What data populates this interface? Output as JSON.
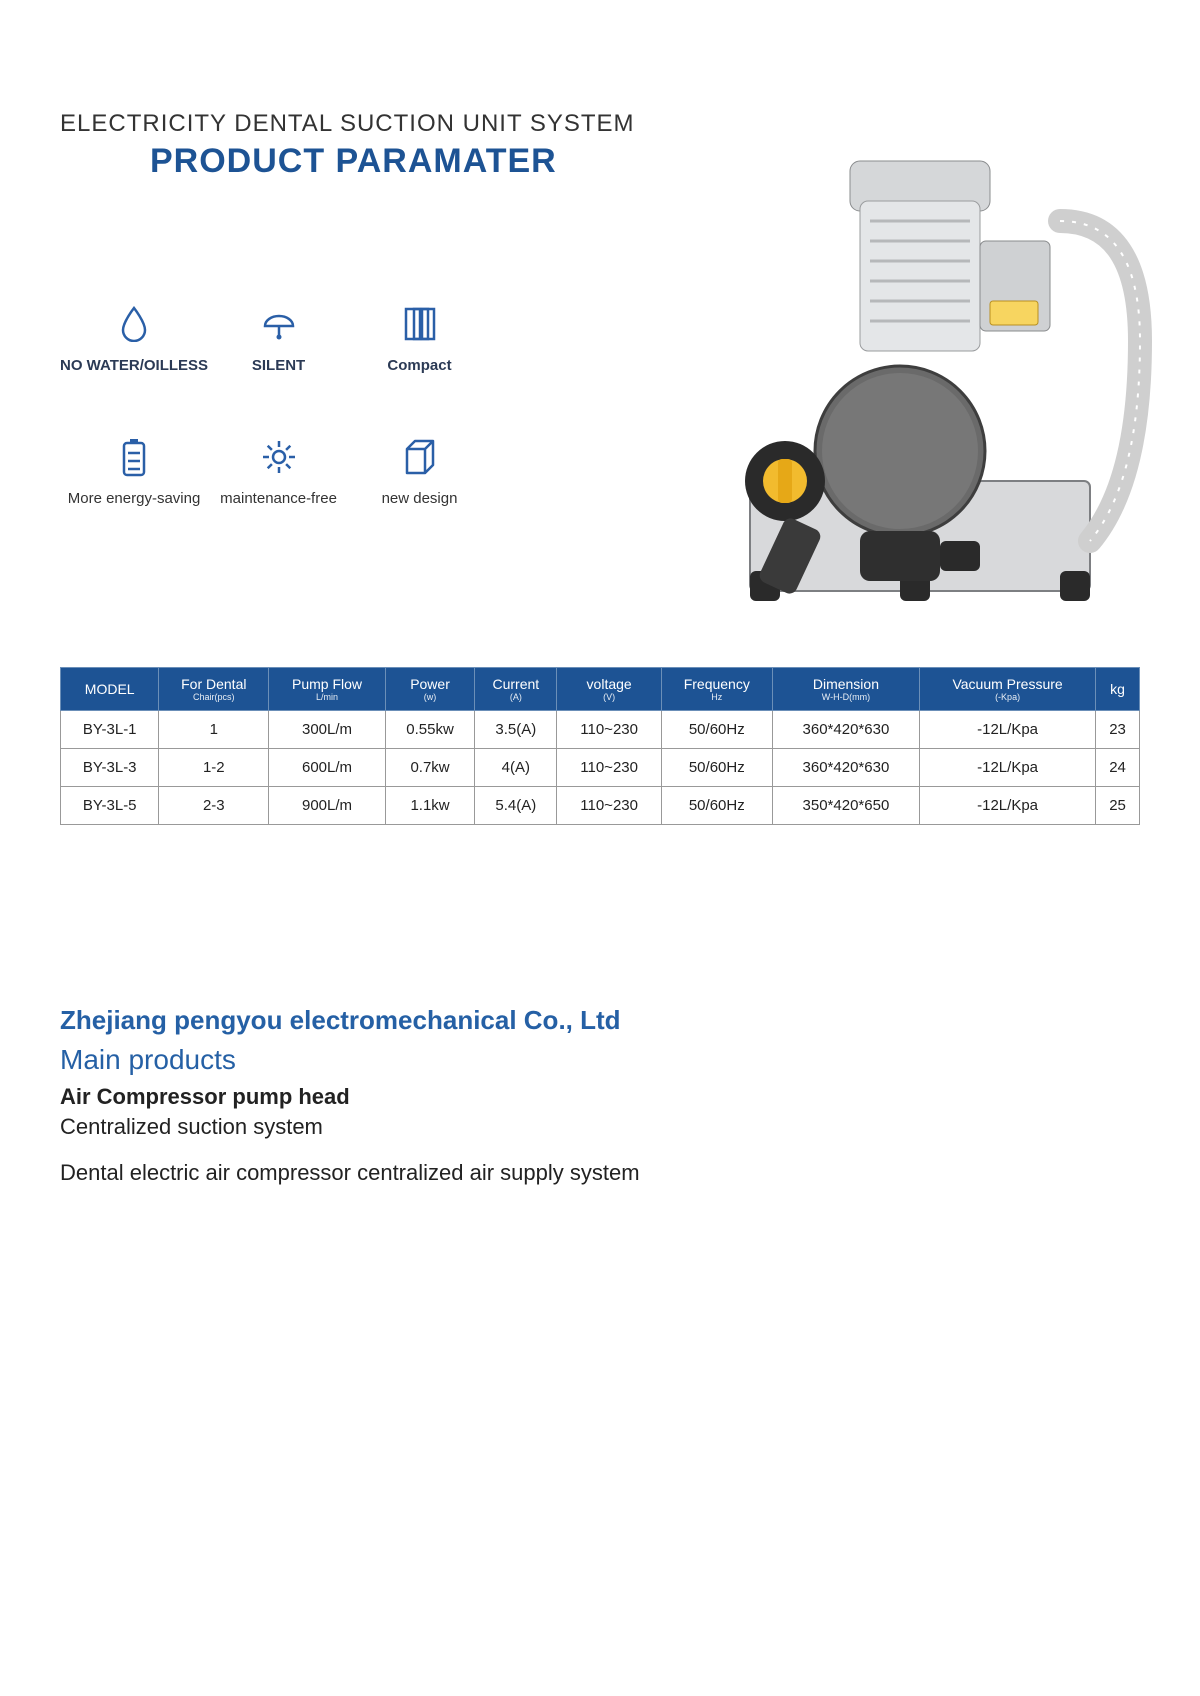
{
  "header": {
    "line1": "ELECTRICITY DENTAL SUCTION UNIT SYSTEM",
    "line2": "PRODUCT PARAMATER"
  },
  "features": [
    {
      "label": "NO WATER/OILLESS",
      "icon": "water-drop"
    },
    {
      "label": "SILENT",
      "icon": "bell"
    },
    {
      "label": "Compact",
      "icon": "layers"
    },
    {
      "label": "More energy-saving",
      "icon": "battery"
    },
    {
      "label": "maintenance-free",
      "icon": "gear"
    },
    {
      "label": "new design",
      "icon": "cube"
    }
  ],
  "icon_color": "#2a5fa7",
  "table": {
    "header_bg": "#1d5394",
    "header_fg": "#ffffff",
    "border_color": "#999999",
    "columns": [
      {
        "main": "MODEL",
        "sub": ""
      },
      {
        "main": "For Dental",
        "sub": "Chair(pcs)"
      },
      {
        "main": "Pump Flow",
        "sub": "L/min"
      },
      {
        "main": "Power",
        "sub": "(w)"
      },
      {
        "main": "Current",
        "sub": "(A)"
      },
      {
        "main": "voltage",
        "sub": "(V)"
      },
      {
        "main": "Frequency",
        "sub": "Hz"
      },
      {
        "main": "Dimension",
        "sub": "W-H-D(mm)"
      },
      {
        "main": "Vacuum Pressure",
        "sub": "(-Kpa)"
      },
      {
        "main": "kg",
        "sub": ""
      }
    ],
    "rows": [
      [
        "BY-3L-1",
        "1",
        "300L/m",
        "0.55kw",
        "3.5(A)",
        "110~230",
        "50/60Hz",
        "360*420*630",
        "-12L/Kpa",
        "23"
      ],
      [
        "BY-3L-3",
        "1-2",
        "600L/m",
        "0.7kw",
        "4(A)",
        "110~230",
        "50/60Hz",
        "360*420*630",
        "-12L/Kpa",
        "24"
      ],
      [
        "BY-3L-5",
        "2-3",
        "900L/m",
        "1.1kw",
        "5.4(A)",
        "110~230",
        "50/60Hz",
        "350*420*650",
        "-12L/Kpa",
        "25"
      ]
    ]
  },
  "footer": {
    "company": "Zhejiang pengyou electromechanical Co., Ltd",
    "main_products_label": "Main products",
    "lines": [
      {
        "text": "Air Compressor pump head",
        "bold": true
      },
      {
        "text": "Centralized suction system",
        "bold": false
      },
      {
        "text": "Dental electric air compressor centralized air supply system",
        "bold": false,
        "gap": true
      }
    ]
  }
}
